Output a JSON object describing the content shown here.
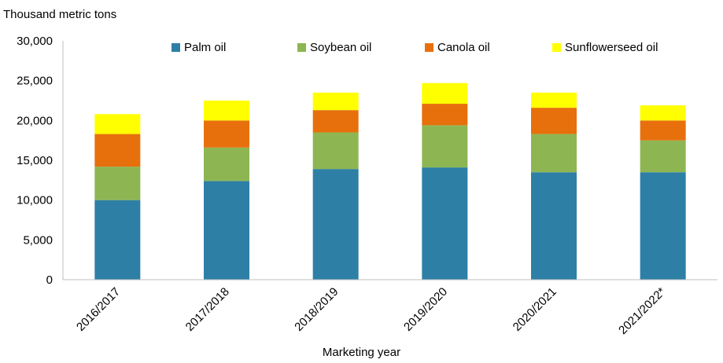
{
  "chart_data": {
    "type": "bar",
    "stacked": true,
    "ylabel": "Thousand metric tons",
    "xlabel": "Marketing year",
    "ylim": [
      0,
      30000
    ],
    "yticks": [
      0,
      5000,
      10000,
      15000,
      20000,
      25000,
      30000
    ],
    "ytick_labels": [
      "0",
      "5,000",
      "10,000",
      "15,000",
      "20,000",
      "25,000",
      "30,000"
    ],
    "categories": [
      "2016/2017",
      "2017/2018",
      "2018/2019",
      "2019/2020",
      "2020/2021",
      "2021/2022*"
    ],
    "series": [
      {
        "name": "Palm oil",
        "color": "#2E7FA5",
        "values": [
          10000,
          12400,
          13900,
          14100,
          13500,
          13500
        ]
      },
      {
        "name": "Soybean oil",
        "color": "#8DB653",
        "values": [
          4200,
          4200,
          4600,
          5300,
          4800,
          4000
        ]
      },
      {
        "name": "Canola oil",
        "color": "#E7700D",
        "values": [
          4100,
          3400,
          2800,
          2700,
          3300,
          2500
        ]
      },
      {
        "name": "Sunflowerseed oil",
        "color": "#FFFF00",
        "values": [
          2500,
          2500,
          2200,
          2600,
          1900,
          1900
        ]
      }
    ],
    "legend_position": "top",
    "grid": false
  }
}
